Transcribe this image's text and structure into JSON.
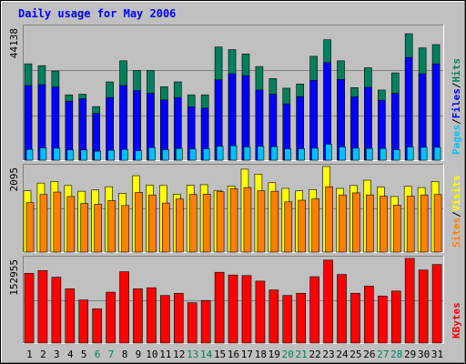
{
  "title": "Daily usage for May 2006",
  "colors": {
    "background": "#c0c0c0",
    "title": "#0000ff",
    "hits": "#00805c",
    "files": "#0000ff",
    "pages": "#00c0ff",
    "visits": "#ffff00",
    "sites": "#ff8000",
    "kbytes": "#ff0000",
    "weekend_label": "#00805c",
    "weekday_label": "#000000"
  },
  "chart_data": [
    {
      "type": "bar",
      "panel": "hits-files-pages",
      "y_max_label": "44138",
      "ylim": [
        0,
        44138
      ],
      "grid": true,
      "legend": [
        {
          "label": "Pages",
          "color": "#00c0ff"
        },
        {
          "label": "Files",
          "color": "#0000ff"
        },
        {
          "label": "Hits",
          "color": "#00805c"
        }
      ],
      "categories": [
        "1",
        "2",
        "3",
        "4",
        "5",
        "6",
        "7",
        "8",
        "9",
        "10",
        "11",
        "12",
        "13",
        "14",
        "15",
        "16",
        "17",
        "18",
        "19",
        "20",
        "21",
        "22",
        "23",
        "24",
        "25",
        "26",
        "27",
        "28",
        "29",
        "30",
        "31"
      ],
      "series": [
        {
          "name": "Hits",
          "values": [
            32000,
            31400,
            29600,
            21700,
            21900,
            17800,
            26000,
            33000,
            29800,
            29800,
            24400,
            26000,
            21700,
            21700,
            37600,
            36700,
            35300,
            31100,
            27100,
            23900,
            25300,
            34500,
            40000,
            33000,
            24100,
            30700,
            23300,
            29000,
            42000,
            37300,
            38400
          ]
        },
        {
          "name": "Files",
          "values": [
            24800,
            25100,
            24300,
            19600,
            20400,
            15500,
            20800,
            24800,
            23100,
            22200,
            20000,
            20800,
            17700,
            17300,
            26700,
            28700,
            28100,
            23300,
            21900,
            18700,
            21100,
            26500,
            32400,
            26800,
            21000,
            24200,
            19900,
            22200,
            34100,
            28700,
            32000
          ]
        },
        {
          "name": "Pages",
          "values": [
            3600,
            4100,
            4000,
            3400,
            3400,
            3000,
            3300,
            3600,
            3100,
            4200,
            3500,
            3900,
            3700,
            3800,
            4600,
            4800,
            4400,
            4600,
            4500,
            3800,
            3800,
            4000,
            5300,
            4400,
            4000,
            3900,
            3900,
            3500,
            4400,
            4300,
            4300
          ]
        }
      ]
    },
    {
      "type": "bar",
      "panel": "visits-sites",
      "y_max_label": "2095",
      "ylim": [
        0,
        2095
      ],
      "grid": true,
      "legend": [
        {
          "label": "Sites",
          "color": "#ff8000"
        },
        {
          "label": "Visits",
          "color": "#ffff00"
        }
      ],
      "categories": [
        "1",
        "2",
        "3",
        "4",
        "5",
        "6",
        "7",
        "8",
        "9",
        "10",
        "11",
        "12",
        "13",
        "14",
        "15",
        "16",
        "17",
        "18",
        "19",
        "20",
        "21",
        "22",
        "23",
        "24",
        "25",
        "26",
        "27",
        "28",
        "29",
        "30",
        "31"
      ],
      "series": [
        {
          "name": "Visits",
          "values": [
            1500,
            1690,
            1730,
            1630,
            1490,
            1520,
            1600,
            1440,
            1870,
            1640,
            1630,
            1420,
            1640,
            1650,
            1510,
            1620,
            2030,
            1910,
            1700,
            1560,
            1500,
            1530,
            2095,
            1560,
            1630,
            1760,
            1590,
            1360,
            1610,
            1580,
            1730
          ]
        },
        {
          "name": "Sites",
          "values": [
            1210,
            1410,
            1470,
            1360,
            1190,
            1170,
            1260,
            1140,
            1460,
            1400,
            1200,
            1300,
            1410,
            1420,
            1480,
            1550,
            1580,
            1500,
            1490,
            1230,
            1270,
            1300,
            1600,
            1400,
            1450,
            1400,
            1370,
            1150,
            1370,
            1400,
            1410
          ]
        }
      ]
    },
    {
      "type": "bar",
      "panel": "kbytes",
      "y_max_label": "152955",
      "ylim": [
        0,
        152955
      ],
      "grid": true,
      "legend": [
        {
          "label": "KBytes",
          "color": "#ff0000"
        }
      ],
      "categories": [
        "1",
        "2",
        "3",
        "4",
        "5",
        "6",
        "7",
        "8",
        "9",
        "10",
        "11",
        "12",
        "13",
        "14",
        "15",
        "16",
        "17",
        "18",
        "19",
        "20",
        "21",
        "22",
        "23",
        "24",
        "25",
        "26",
        "27",
        "28",
        "29",
        "30",
        "31"
      ],
      "series": [
        {
          "name": "KBytes",
          "values": [
            126000,
            131000,
            119000,
            98000,
            78000,
            62000,
            92000,
            129000,
            98000,
            100000,
            86000,
            90000,
            73000,
            77000,
            128000,
            123000,
            122000,
            112000,
            96000,
            86000,
            90000,
            120000,
            150000,
            124000,
            90000,
            103000,
            85000,
            94000,
            152955,
            132000,
            142000
          ]
        }
      ]
    }
  ]
}
